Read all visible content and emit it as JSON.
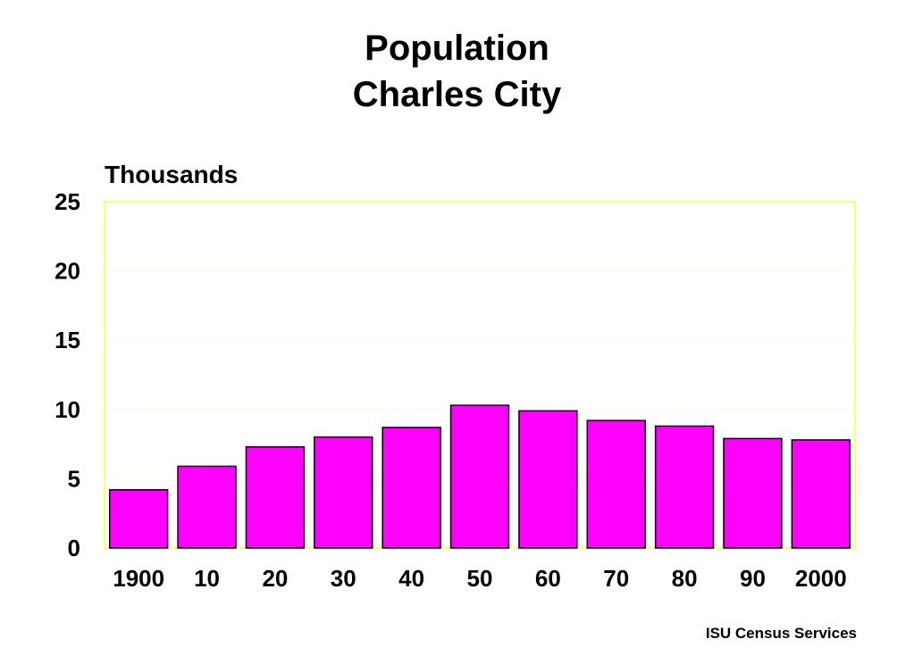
{
  "title_lines": [
    "Population",
    "Charles City"
  ],
  "source": "ISU Census Services",
  "colors": {
    "bar_fill": "#ff00ff",
    "bar_stroke": "#000000",
    "plot_border": "#ffff66",
    "grid": "#fffbe6"
  },
  "chart_data": {
    "type": "bar",
    "title": "Population Charles City",
    "ylabel": "Thousands",
    "xlabel": "",
    "categories": [
      "1900",
      "10",
      "20",
      "30",
      "40",
      "50",
      "60",
      "70",
      "80",
      "90",
      "2000"
    ],
    "values": [
      4.2,
      5.9,
      7.3,
      8.0,
      8.7,
      10.3,
      9.9,
      9.2,
      8.8,
      7.9,
      7.8
    ],
    "ylim": [
      0,
      25
    ],
    "yticks": [
      0,
      5,
      10,
      15,
      20,
      25
    ],
    "grid": true,
    "legend": "none"
  }
}
